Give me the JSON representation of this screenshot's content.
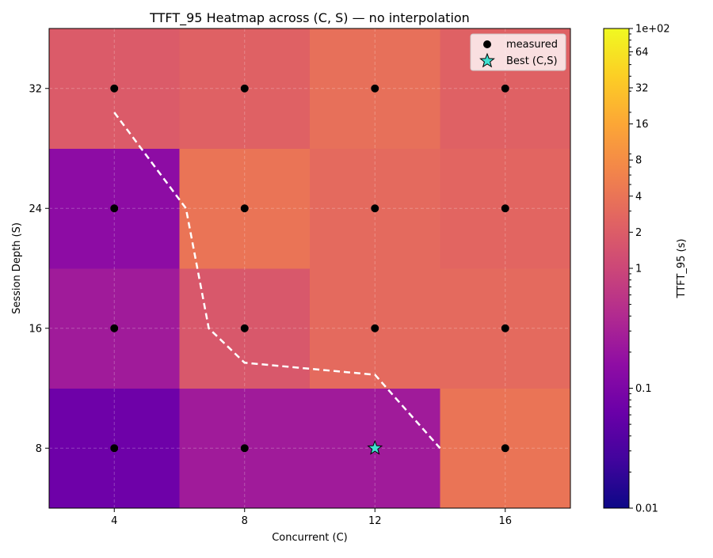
{
  "chart_data": {
    "type": "heatmap",
    "title": "TTFT_95 Heatmap across (C, S) — no interpolation",
    "xlabel": "Concurrent (C)",
    "ylabel": "Session Depth (S)",
    "x": [
      4,
      8,
      12,
      16
    ],
    "y": [
      8,
      16,
      24,
      32
    ],
    "xlim": [
      2,
      18
    ],
    "ylim": [
      4,
      36
    ],
    "cells": [
      {
        "c": 4,
        "s": 8,
        "value": 0.07
      },
      {
        "c": 8,
        "s": 8,
        "value": 0.25
      },
      {
        "c": 12,
        "s": 8,
        "value": 0.25
      },
      {
        "c": 16,
        "s": 8,
        "value": 4.0
      },
      {
        "c": 4,
        "s": 16,
        "value": 0.25
      },
      {
        "c": 8,
        "s": 16,
        "value": 1.7
      },
      {
        "c": 12,
        "s": 16,
        "value": 3.0
      },
      {
        "c": 16,
        "s": 16,
        "value": 3.0
      },
      {
        "c": 4,
        "s": 24,
        "value": 0.15
      },
      {
        "c": 8,
        "s": 24,
        "value": 4.0
      },
      {
        "c": 12,
        "s": 24,
        "value": 3.0
      },
      {
        "c": 16,
        "s": 24,
        "value": 2.6
      },
      {
        "c": 4,
        "s": 32,
        "value": 1.9
      },
      {
        "c": 8,
        "s": 32,
        "value": 2.3
      },
      {
        "c": 12,
        "s": 32,
        "value": 3.5
      },
      {
        "c": 16,
        "s": 32,
        "value": 2.3
      }
    ],
    "measured_points": [
      [
        4,
        8
      ],
      [
        8,
        8
      ],
      [
        12,
        8
      ],
      [
        16,
        8
      ],
      [
        4,
        16
      ],
      [
        8,
        16
      ],
      [
        12,
        16
      ],
      [
        16,
        16
      ],
      [
        4,
        24
      ],
      [
        8,
        24
      ],
      [
        12,
        24
      ],
      [
        16,
        24
      ],
      [
        4,
        32
      ],
      [
        8,
        32
      ],
      [
        12,
        32
      ],
      [
        16,
        32
      ]
    ],
    "best_point": [
      12,
      8
    ],
    "frontier_line": [
      [
        4,
        30.4
      ],
      [
        6.2,
        24
      ],
      [
        6.9,
        16
      ],
      [
        8,
        13.7
      ],
      [
        12,
        12.9
      ],
      [
        14,
        8
      ]
    ],
    "colorbar": {
      "label": "TTFT_95 (s)",
      "scale": "log",
      "range": [
        0.01,
        100
      ],
      "ticks": [
        {
          "value": 0.01,
          "label": "0.01"
        },
        {
          "value": 0.1,
          "label": "0.1"
        },
        {
          "value": 1,
          "label": "1"
        },
        {
          "value": 2,
          "label": "2"
        },
        {
          "value": 4,
          "label": "4"
        },
        {
          "value": 8,
          "label": "8"
        },
        {
          "value": 16,
          "label": "16"
        },
        {
          "value": 32,
          "label": "32"
        },
        {
          "value": 64,
          "label": "64"
        },
        {
          "value": 100,
          "label": "1e+02"
        }
      ],
      "colormap": "plasma"
    },
    "legend": {
      "placement": "upper-right",
      "entries": [
        {
          "label": "measured",
          "marker": "circle",
          "color": "#000000"
        },
        {
          "label": "Best (C,S)",
          "marker": "star",
          "color": "#40e0d0"
        }
      ]
    },
    "grid": true,
    "frontier_color": "#ffffff"
  }
}
